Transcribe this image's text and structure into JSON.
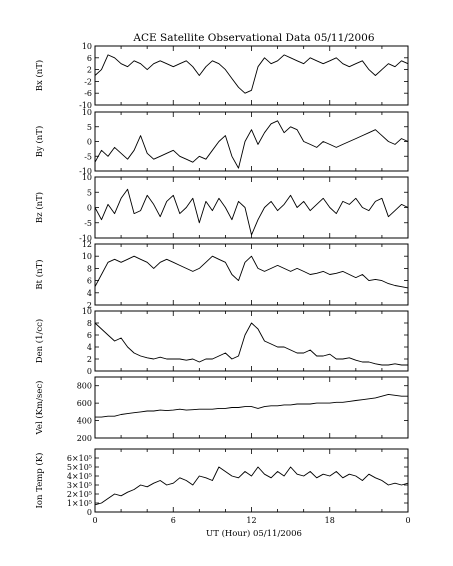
{
  "title": "ACE Satellite Observational Data  05/11/2006",
  "xlabel": "UT (Hour)  05/11/2006",
  "x_ticks": [
    "0",
    "6",
    "12",
    "18",
    "0"
  ],
  "chart_data": [
    {
      "type": "line",
      "ylabel": "Bx (nT)",
      "ylim": [
        -10,
        10
      ],
      "yticks": [
        -10,
        -6,
        -2,
        2,
        6,
        10
      ],
      "ytick_labels": [
        "-10",
        "-6",
        "-2",
        "2",
        "6",
        "10"
      ],
      "x": [
        0,
        0.5,
        1,
        1.5,
        2,
        2.5,
        3,
        3.5,
        4,
        4.5,
        5,
        5.5,
        6,
        6.5,
        7,
        7.5,
        8,
        8.5,
        9,
        9.5,
        10,
        10.5,
        11,
        11.5,
        12,
        12.5,
        13,
        13.5,
        14,
        14.5,
        15,
        15.5,
        16,
        16.5,
        17,
        17.5,
        18,
        18.5,
        19,
        19.5,
        20,
        20.5,
        21,
        21.5,
        22,
        22.5,
        23,
        23.5,
        24
      ],
      "y": [
        0,
        2,
        7,
        6,
        4,
        3,
        5,
        4,
        2,
        4,
        5,
        4,
        3,
        4,
        5,
        3,
        0,
        3,
        5,
        4,
        2,
        -1,
        -4,
        -6,
        -5,
        3,
        6,
        4,
        5,
        7,
        6,
        5,
        4,
        6,
        5,
        4,
        5,
        6,
        4,
        3,
        4,
        5,
        2,
        0,
        2,
        4,
        3,
        5,
        4
      ]
    },
    {
      "type": "line",
      "ylabel": "By (nT)",
      "ylim": [
        -10,
        10
      ],
      "yticks": [
        -10,
        -5,
        0,
        5,
        10
      ],
      "ytick_labels": [
        "-10",
        "-5",
        "0",
        "5",
        "10"
      ],
      "x": [
        0,
        0.5,
        1,
        1.5,
        2,
        2.5,
        3,
        3.5,
        4,
        4.5,
        5,
        5.5,
        6,
        6.5,
        7,
        7.5,
        8,
        8.5,
        9,
        9.5,
        10,
        10.5,
        11,
        11.5,
        12,
        12.5,
        13,
        13.5,
        14,
        14.5,
        15,
        15.5,
        16,
        16.5,
        17,
        17.5,
        18,
        18.5,
        19,
        19.5,
        20,
        20.5,
        21,
        21.5,
        22,
        22.5,
        23,
        23.5,
        24
      ],
      "y": [
        -7,
        -3,
        -5,
        -2,
        -4,
        -6,
        -3,
        2,
        -4,
        -6,
        -5,
        -4,
        -3,
        -5,
        -6,
        -7,
        -5,
        -6,
        -3,
        0,
        2,
        -5,
        -9,
        0,
        4,
        -1,
        3,
        6,
        7,
        3,
        5,
        4,
        0,
        -1,
        -2,
        0,
        -1,
        -2,
        -1,
        0,
        1,
        2,
        3,
        4,
        2,
        0,
        -1,
        1,
        0
      ]
    },
    {
      "type": "line",
      "ylabel": "Bz (nT)",
      "ylim": [
        -10,
        10
      ],
      "yticks": [
        -10,
        -5,
        0,
        5,
        10
      ],
      "ytick_labels": [
        "-10",
        "-5",
        "0",
        "5",
        "10"
      ],
      "x": [
        0,
        0.5,
        1,
        1.5,
        2,
        2.5,
        3,
        3.5,
        4,
        4.5,
        5,
        5.5,
        6,
        6.5,
        7,
        7.5,
        8,
        8.5,
        9,
        9.5,
        10,
        10.5,
        11,
        11.5,
        12,
        12.5,
        13,
        13.5,
        14,
        14.5,
        15,
        15.5,
        16,
        16.5,
        17,
        17.5,
        18,
        18.5,
        19,
        19.5,
        20,
        20.5,
        21,
        21.5,
        22,
        22.5,
        23,
        23.5,
        24
      ],
      "y": [
        0,
        -4,
        1,
        -2,
        3,
        6,
        -2,
        -1,
        4,
        1,
        -3,
        2,
        4,
        -2,
        0,
        3,
        -5,
        2,
        -1,
        3,
        0,
        -4,
        2,
        0,
        -9,
        -4,
        0,
        2,
        -1,
        1,
        4,
        0,
        2,
        -1,
        1,
        3,
        0,
        -2,
        2,
        1,
        3,
        0,
        -1,
        2,
        3,
        -3,
        -1,
        1,
        0
      ]
    },
    {
      "type": "line",
      "ylabel": "Bt (nT)",
      "ylim": [
        2,
        12
      ],
      "yticks": [
        2,
        4,
        6,
        8,
        10,
        12
      ],
      "ytick_labels": [
        "2",
        "4",
        "6",
        "8",
        "10",
        "12"
      ],
      "x": [
        0,
        0.5,
        1,
        1.5,
        2,
        2.5,
        3,
        3.5,
        4,
        4.5,
        5,
        5.5,
        6,
        6.5,
        7,
        7.5,
        8,
        8.5,
        9,
        9.5,
        10,
        10.5,
        11,
        11.5,
        12,
        12.5,
        13,
        13.5,
        14,
        14.5,
        15,
        15.5,
        16,
        16.5,
        17,
        17.5,
        18,
        18.5,
        19,
        19.5,
        20,
        20.5,
        21,
        21.5,
        22,
        22.5,
        23,
        23.5,
        24
      ],
      "y": [
        5,
        7,
        9,
        9.5,
        9,
        9.5,
        10,
        9.5,
        9,
        8,
        9,
        9.5,
        9,
        8.5,
        8,
        7.5,
        8,
        9,
        10,
        9.5,
        9,
        7,
        6,
        9,
        10,
        8,
        7.5,
        8,
        8.5,
        8,
        7.5,
        8,
        7.5,
        7,
        7.2,
        7.5,
        7,
        7.2,
        7.5,
        7,
        6.5,
        7,
        6,
        6.2,
        6,
        5.5,
        5.2,
        5,
        4.8
      ]
    },
    {
      "type": "line",
      "ylabel": "Den (1/cc)",
      "ylim": [
        0,
        10
      ],
      "yticks": [
        0,
        2,
        4,
        6,
        8,
        10
      ],
      "ytick_labels": [
        "0",
        "2",
        "4",
        "6",
        "8",
        "10"
      ],
      "x": [
        0,
        0.5,
        1,
        1.5,
        2,
        2.5,
        3,
        3.5,
        4,
        4.5,
        5,
        5.5,
        6,
        6.5,
        7,
        7.5,
        8,
        8.5,
        9,
        9.5,
        10,
        10.5,
        11,
        11.5,
        12,
        12.5,
        13,
        13.5,
        14,
        14.5,
        15,
        15.5,
        16,
        16.5,
        17,
        17.5,
        18,
        18.5,
        19,
        19.5,
        20,
        20.5,
        21,
        21.5,
        22,
        22.5,
        23,
        23.5,
        24
      ],
      "y": [
        8,
        7,
        6,
        5,
        5.5,
        4,
        3,
        2.5,
        2.2,
        2,
        2.3,
        2,
        2,
        2,
        1.8,
        2,
        1.5,
        2,
        2,
        2.5,
        3,
        2,
        2.5,
        6,
        8,
        7,
        5,
        4.5,
        4,
        4,
        3.5,
        3,
        3,
        3.5,
        2.5,
        2.5,
        2.8,
        2,
        2,
        2.2,
        1.8,
        1.5,
        1.5,
        1.2,
        1,
        1,
        1.2,
        1,
        1
      ]
    },
    {
      "type": "line",
      "ylabel": "Vel (Km/sec)",
      "ylim": [
        200,
        900
      ],
      "yticks": [
        200,
        400,
        600,
        800
      ],
      "ytick_labels": [
        "200",
        "400",
        "600",
        "800"
      ],
      "x": [
        0,
        0.5,
        1,
        1.5,
        2,
        2.5,
        3,
        3.5,
        4,
        4.5,
        5,
        5.5,
        6,
        6.5,
        7,
        7.5,
        8,
        8.5,
        9,
        9.5,
        10,
        10.5,
        11,
        11.5,
        12,
        12.5,
        13,
        13.5,
        14,
        14.5,
        15,
        15.5,
        16,
        16.5,
        17,
        17.5,
        18,
        18.5,
        19,
        19.5,
        20,
        20.5,
        21,
        21.5,
        22,
        22.5,
        23,
        23.5,
        24
      ],
      "y": [
        440,
        440,
        450,
        450,
        470,
        480,
        490,
        500,
        510,
        510,
        520,
        515,
        520,
        530,
        520,
        525,
        530,
        530,
        530,
        540,
        540,
        550,
        550,
        560,
        560,
        540,
        560,
        570,
        570,
        580,
        580,
        590,
        590,
        590,
        600,
        600,
        600,
        610,
        610,
        620,
        630,
        640,
        650,
        660,
        680,
        700,
        690,
        680,
        680
      ]
    },
    {
      "type": "line",
      "ylabel": "Ion Temp (K)",
      "ylim": [
        0,
        700000
      ],
      "yticks": [
        0,
        100000,
        200000,
        300000,
        400000,
        500000,
        600000
      ],
      "ytick_labels": [
        "0",
        "1×10⁵",
        "2×10⁵",
        "3×10⁵",
        "4×10⁵",
        "5×10⁵",
        "6×10⁵"
      ],
      "x": [
        0,
        0.5,
        1,
        1.5,
        2,
        2.5,
        3,
        3.5,
        4,
        4.5,
        5,
        5.5,
        6,
        6.5,
        7,
        7.5,
        8,
        8.5,
        9,
        9.5,
        10,
        10.5,
        11,
        11.5,
        12,
        12.5,
        13,
        13.5,
        14,
        14.5,
        15,
        15.5,
        16,
        16.5,
        17,
        17.5,
        18,
        18.5,
        19,
        19.5,
        20,
        20.5,
        21,
        21.5,
        22,
        22.5,
        23,
        23.5,
        24
      ],
      "y": [
        80000,
        100000,
        150000,
        200000,
        180000,
        220000,
        250000,
        300000,
        280000,
        320000,
        350000,
        300000,
        320000,
        380000,
        350000,
        300000,
        400000,
        380000,
        350000,
        500000,
        450000,
        400000,
        380000,
        450000,
        400000,
        500000,
        420000,
        380000,
        450000,
        400000,
        500000,
        420000,
        400000,
        450000,
        380000,
        420000,
        400000,
        450000,
        380000,
        420000,
        400000,
        350000,
        420000,
        380000,
        350000,
        300000,
        320000,
        300000,
        320000
      ]
    }
  ]
}
